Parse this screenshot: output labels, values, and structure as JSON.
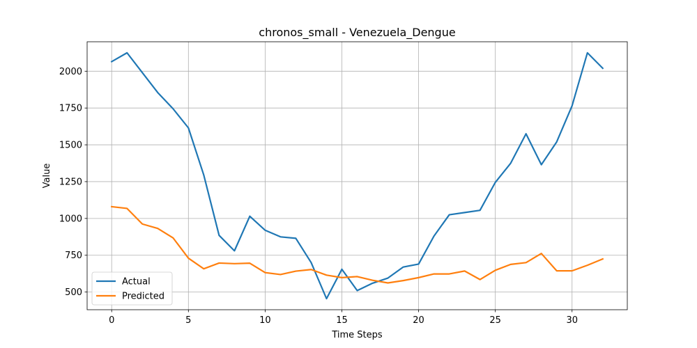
{
  "chart_data": {
    "type": "line",
    "title": "chronos_small - Venezuela_Dengue",
    "xlabel": "Time Steps",
    "ylabel": "Value",
    "x": [
      0,
      1,
      2,
      3,
      4,
      5,
      6,
      7,
      8,
      9,
      10,
      11,
      12,
      13,
      14,
      15,
      16,
      17,
      18,
      19,
      20,
      21,
      22,
      23,
      24,
      25,
      26,
      27,
      28,
      29,
      30,
      31,
      32
    ],
    "xlim": [
      -1.6,
      33.6
    ],
    "ylim": [
      380,
      2200
    ],
    "xticks": [
      0,
      5,
      10,
      15,
      20,
      25,
      30
    ],
    "yticks": [
      500,
      750,
      1000,
      1250,
      1500,
      1750,
      2000
    ],
    "grid": true,
    "legend_position": "lower-left",
    "series": [
      {
        "name": "Actual",
        "color": "#1f77b4",
        "values": [
          2065,
          2125,
          1990,
          1855,
          1745,
          1615,
          1295,
          885,
          780,
          1015,
          920,
          875,
          865,
          700,
          455,
          655,
          510,
          560,
          595,
          670,
          690,
          880,
          1025,
          1040,
          1055,
          1245,
          1375,
          1575,
          1365,
          1520,
          1765,
          2125,
          2020
        ]
      },
      {
        "name": "Predicted",
        "color": "#ff7f0e",
        "values": [
          1080,
          1068,
          962,
          932,
          868,
          730,
          658,
          697,
          693,
          696,
          632,
          619,
          642,
          653,
          615,
          598,
          605,
          580,
          562,
          578,
          598,
          623,
          623,
          643,
          585,
          648,
          688,
          700,
          762,
          644,
          644,
          682,
          725
        ]
      }
    ]
  }
}
